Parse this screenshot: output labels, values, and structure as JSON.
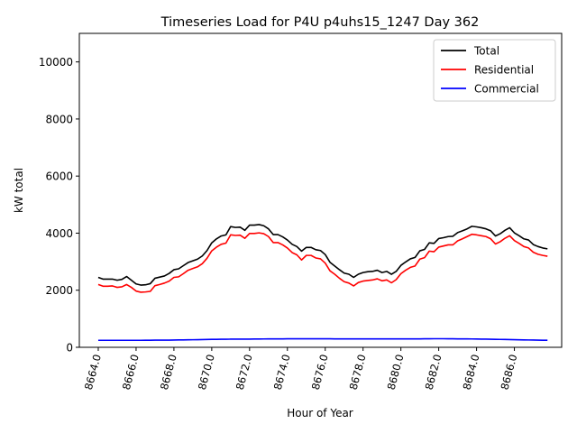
{
  "chart_data": {
    "type": "line",
    "title": "Timeseries Load for P4U p4uhs15_1247  Day 362",
    "xlabel": "Hour of Year",
    "ylabel": "kW total",
    "xlim": [
      8663.0,
      8688.5
    ],
    "ylim": [
      0,
      11000
    ],
    "xticks": [
      8664.0,
      8666.0,
      8668.0,
      8670.0,
      8672.0,
      8674.0,
      8676.0,
      8678.0,
      8680.0,
      8682.0,
      8684.0,
      8686.0
    ],
    "xtick_labels": [
      "8664.0",
      "8666.0",
      "8668.0",
      "8670.0",
      "8672.0",
      "8674.0",
      "8676.0",
      "8678.0",
      "8680.0",
      "8682.0",
      "8684.0",
      "8686.0"
    ],
    "yticks": [
      0,
      2000,
      4000,
      6000,
      8000,
      10000
    ],
    "ytick_labels": [
      "0",
      "2000",
      "4000",
      "6000",
      "8000",
      "10000"
    ],
    "legend_position": "top-right",
    "x_start": 8664.0,
    "x_step": 0.25,
    "series": [
      {
        "name": "Total",
        "color": "#000000",
        "values": [
          2450,
          2390,
          2390,
          2390,
          2350,
          2380,
          2480,
          2350,
          2220,
          2180,
          2190,
          2230,
          2420,
          2460,
          2500,
          2590,
          2720,
          2750,
          2860,
          2970,
          3030,
          3090,
          3200,
          3390,
          3660,
          3800,
          3900,
          3940,
          4230,
          4200,
          4210,
          4100,
          4280,
          4280,
          4300,
          4260,
          4150,
          3950,
          3950,
          3870,
          3760,
          3610,
          3530,
          3370,
          3500,
          3500,
          3420,
          3390,
          3250,
          2980,
          2850,
          2720,
          2600,
          2560,
          2450,
          2560,
          2620,
          2650,
          2660,
          2700,
          2620,
          2660,
          2560,
          2660,
          2870,
          2990,
          3100,
          3150,
          3380,
          3430,
          3660,
          3640,
          3810,
          3840,
          3880,
          3890,
          4020,
          4080,
          4150,
          4240,
          4220,
          4190,
          4150,
          4080,
          3900,
          3980,
          4100,
          4190,
          4010,
          3910,
          3800,
          3760,
          3600,
          3530,
          3480,
          3450
        ]
      },
      {
        "name": "Residential",
        "color": "#ff0000",
        "values": [
          2200,
          2140,
          2140,
          2150,
          2100,
          2120,
          2200,
          2100,
          1970,
          1930,
          1940,
          1960,
          2160,
          2200,
          2250,
          2320,
          2450,
          2470,
          2580,
          2700,
          2760,
          2820,
          2930,
          3120,
          3380,
          3510,
          3610,
          3650,
          3940,
          3920,
          3930,
          3820,
          3990,
          3990,
          4010,
          3980,
          3880,
          3670,
          3670,
          3590,
          3480,
          3320,
          3240,
          3060,
          3220,
          3220,
          3130,
          3100,
          2950,
          2680,
          2560,
          2420,
          2300,
          2250,
          2150,
          2270,
          2320,
          2340,
          2360,
          2400,
          2330,
          2360,
          2260,
          2370,
          2580,
          2700,
          2800,
          2850,
          3090,
          3140,
          3370,
          3350,
          3510,
          3550,
          3590,
          3590,
          3730,
          3800,
          3880,
          3960,
          3940,
          3910,
          3880,
          3800,
          3620,
          3700,
          3820,
          3910,
          3740,
          3640,
          3530,
          3480,
          3330,
          3260,
          3220,
          3190
        ]
      },
      {
        "name": "Commercial",
        "color": "#0000ff",
        "values": [
          245,
          245,
          245,
          245,
          245,
          245,
          245,
          245,
          245,
          245,
          248,
          248,
          250,
          250,
          252,
          252,
          255,
          258,
          260,
          262,
          265,
          268,
          272,
          275,
          278,
          280,
          282,
          283,
          285,
          285,
          285,
          286,
          288,
          290,
          290,
          292,
          293,
          295,
          296,
          296,
          297,
          297,
          298,
          298,
          298,
          298,
          298,
          298,
          298,
          297,
          296,
          296,
          295,
          295,
          295,
          295,
          295,
          295,
          294,
          294,
          294,
          294,
          294,
          294,
          294,
          294,
          295,
          295,
          296,
          298,
          298,
          300,
          300,
          300,
          298,
          298,
          296,
          295,
          294,
          292,
          290,
          288,
          285,
          282,
          280,
          277,
          273,
          270,
          267,
          264,
          260,
          257,
          254,
          251,
          248,
          246
        ]
      }
    ]
  }
}
